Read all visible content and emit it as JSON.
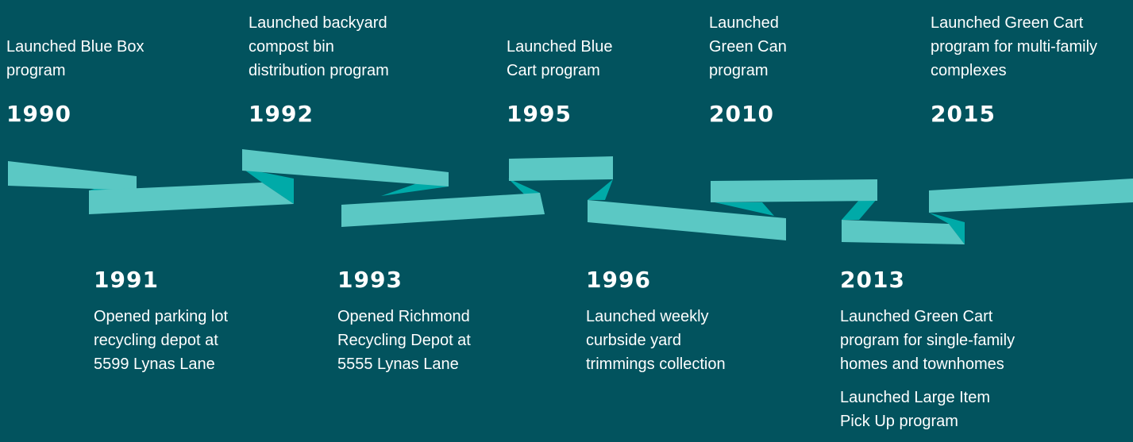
{
  "top_events": [
    {
      "year": "1990",
      "lines": [
        "Launched Blue Box",
        "program"
      ]
    },
    {
      "year": "1992",
      "lines": [
        "Launched backyard",
        "compost bin",
        "distribution program"
      ]
    },
    {
      "year": "1995",
      "lines": [
        "Launched Blue",
        "Cart program"
      ]
    },
    {
      "year": "2010",
      "lines": [
        "Launched",
        "Green Can",
        "program"
      ]
    },
    {
      "year": "2015",
      "lines": [
        "Launched Green Cart",
        "program for multi-family",
        "complexes"
      ]
    }
  ],
  "bottom_events": [
    {
      "year": "1991",
      "paragraphs": [
        [
          "Opened parking lot",
          "recycling depot at",
          "5599 Lynas Lane"
        ]
      ]
    },
    {
      "year": "1993",
      "paragraphs": [
        [
          "Opened Richmond",
          "Recycling Depot at",
          "5555 Lynas Lane"
        ]
      ]
    },
    {
      "year": "1996",
      "paragraphs": [
        [
          "Launched weekly",
          "curbside yard",
          "trimmings collection"
        ]
      ]
    },
    {
      "year": "2013",
      "paragraphs": [
        [
          "Launched Green Cart",
          "program for single-family",
          "homes and townhomes"
        ],
        [
          "Launched Large Item",
          "Pick Up program"
        ]
      ]
    }
  ]
}
